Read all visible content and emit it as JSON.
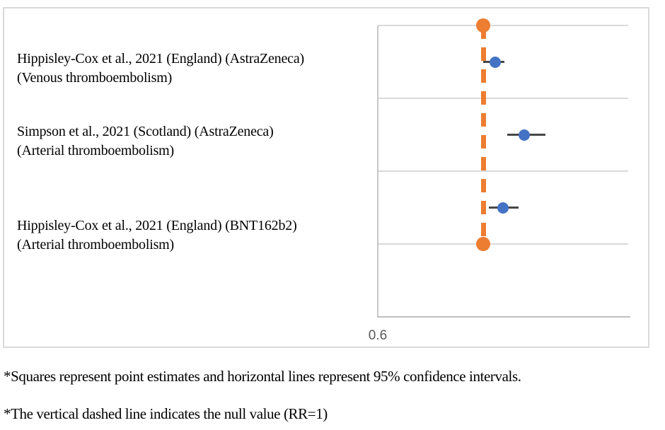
{
  "chart_data": {
    "type": "scatter",
    "subtype": "forest-plot",
    "title": "",
    "xlabel": "",
    "ylabel": "",
    "xlim": [
      0.6,
      1.55
    ],
    "x_ticks": [
      {
        "value": 0.6,
        "label": "0.6"
      }
    ],
    "grid": "horizontal",
    "bands": 4,
    "null_line": {
      "value": 1.0,
      "meaning": "null value (RR=1)",
      "style": "dashed",
      "color": "#ED7D31"
    },
    "marker_color": "#4472C4",
    "ci_color": "#474747",
    "gridline_color": "#d9d9d9",
    "tick_color": "#595959",
    "rows": [
      {
        "label": [
          "Hippisley-Cox et al., 2021 (England) (AstraZeneca)",
          "(Venous thromboembolism)"
        ],
        "estimate": 1.045,
        "ci": [
          1.0,
          1.08
        ]
      },
      {
        "label": [
          "Simpson et al., 2021 (Scotland) (AstraZeneca)",
          "(Arterial thromboembolism)"
        ],
        "estimate": 1.155,
        "ci": [
          1.09,
          1.235
        ]
      },
      {
        "label": [
          "Hippisley-Cox et al., 2021 (England) (BNT162b2)",
          "(Arterial thromboembolism)"
        ],
        "estimate": 1.075,
        "ci": [
          1.02,
          1.135
        ]
      }
    ]
  },
  "footnotes": [
    "*Squares represent point estimates and horizontal lines represent 95% confidence intervals.",
    "*The vertical dashed line indicates the null value (RR=1)"
  ]
}
